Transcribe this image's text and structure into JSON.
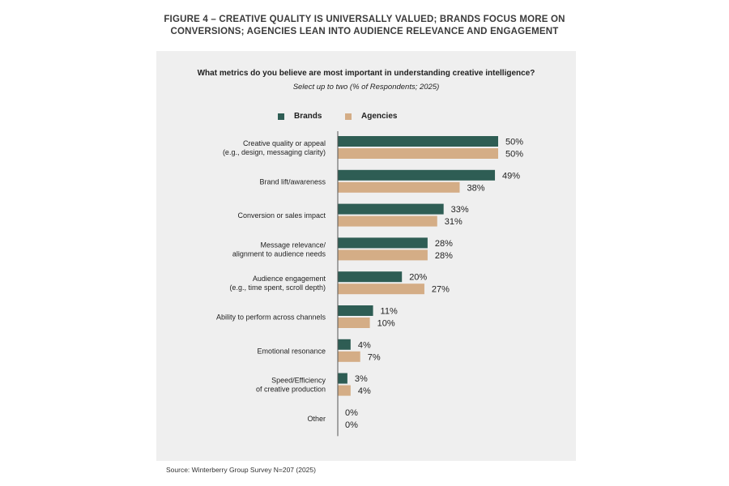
{
  "figure": {
    "title_line1": "FIGURE 4 – CREATIVE QUALITY IS UNIVERSALLY VALUED; BRANDS FOCUS MORE ON",
    "title_line2": "CONVERSIONS; AGENCIES LEAN INTO AUDIENCE RELEVANCE AND ENGAGEMENT",
    "source": "Source: Winterberry Group Survey N=207 (2025)"
  },
  "chart_data": {
    "type": "bar",
    "orientation": "horizontal",
    "title": "What metrics do you believe are most important in understanding creative intelligence?",
    "subtitle": "Select up to two (% of Respondents; 2025)",
    "categories": [
      [
        "Creative quality or appeal",
        "(e.g., design, messaging clarity)"
      ],
      [
        "Brand lift/awareness"
      ],
      [
        "Conversion or sales impact"
      ],
      [
        "Message relevance/",
        "alignment to audience needs"
      ],
      [
        "Audience engagement",
        "(e.g., time spent, scroll depth)"
      ],
      [
        "Ability to perform across channels"
      ],
      [
        "Emotional resonance"
      ],
      [
        "Speed/Efficiency",
        "of creative production"
      ],
      [
        "Other"
      ]
    ],
    "series": [
      {
        "name": "Brands",
        "color": "#2e5d54",
        "values": [
          50,
          49,
          33,
          28,
          20,
          11,
          4,
          3,
          0
        ]
      },
      {
        "name": "Agencies",
        "color": "#d4ad86",
        "values": [
          50,
          38,
          31,
          28,
          27,
          10,
          7,
          4,
          0
        ]
      }
    ],
    "value_suffix": "%",
    "xlim": [
      0,
      50
    ],
    "legend_position": "top",
    "grid": false
  }
}
